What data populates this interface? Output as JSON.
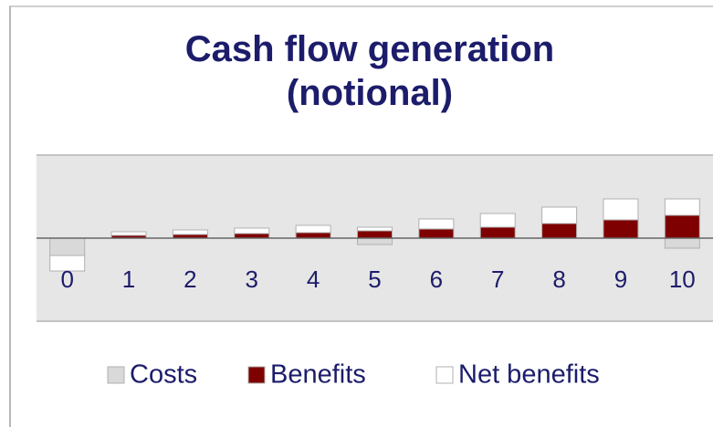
{
  "chart_data": {
    "type": "bar",
    "title": "Cash flow generation (notional)",
    "categories": [
      "0",
      "1",
      "2",
      "3",
      "4",
      "5",
      "6",
      "7",
      "8",
      "9",
      "10"
    ],
    "series": [
      {
        "name": "Costs",
        "color": "#d9d9d9",
        "values": [
          -1.9,
          0,
          0,
          0,
          0,
          -0.7,
          0,
          0,
          0,
          0,
          -1.1
        ]
      },
      {
        "name": "Benefits",
        "color": "#7f0000",
        "values": [
          0,
          0.3,
          0.4,
          0.5,
          0.6,
          0.8,
          1.0,
          1.2,
          1.6,
          2.0,
          2.5
        ]
      },
      {
        "name": "Net benefits",
        "color": "#ffffff",
        "values": [
          -1.7,
          0.4,
          0.5,
          0.6,
          0.8,
          0.4,
          1.1,
          1.5,
          1.8,
          2.3,
          1.8
        ]
      }
    ],
    "ylim": [
      -9.1,
      9.1
    ],
    "stacked": true
  }
}
